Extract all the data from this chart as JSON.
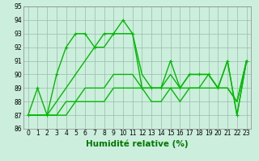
{
  "xlabel": "Humidité relative (%)",
  "bg_color": "#cceedd",
  "grid_color": "#99bbaa",
  "line_color": "#00bb00",
  "xlim": [
    -0.5,
    23.5
  ],
  "ylim": [
    86,
    95
  ],
  "yticks": [
    86,
    87,
    88,
    89,
    90,
    91,
    92,
    93,
    94,
    95
  ],
  "xticks": [
    0,
    1,
    2,
    3,
    4,
    5,
    6,
    7,
    8,
    9,
    10,
    11,
    12,
    13,
    14,
    15,
    16,
    17,
    18,
    19,
    20,
    21,
    22,
    23
  ],
  "series": [
    [
      87,
      89,
      87,
      90,
      92,
      93,
      93,
      92,
      93,
      93,
      94,
      93,
      89,
      89,
      89,
      91,
      89,
      90,
      90,
      90,
      89,
      91,
      87,
      91
    ],
    [
      87,
      87,
      87,
      88,
      89,
      90,
      91,
      92,
      92,
      93,
      93,
      93,
      90,
      89,
      89,
      90,
      89,
      90,
      90,
      90,
      89,
      91,
      87,
      91
    ],
    [
      87,
      87,
      87,
      87,
      88,
      88,
      89,
      89,
      89,
      90,
      90,
      90,
      89,
      89,
      89,
      89,
      89,
      89,
      89,
      90,
      89,
      89,
      88,
      91
    ],
    [
      87,
      87,
      87,
      87,
      87,
      88,
      88,
      88,
      88,
      89,
      89,
      89,
      89,
      88,
      88,
      89,
      88,
      89,
      89,
      89,
      89,
      89,
      88,
      91
    ]
  ],
  "markers": [
    true,
    false,
    false,
    false
  ],
  "xlabel_color": "#007700",
  "xlabel_fontsize": 7.5,
  "tick_fontsize": 5.5,
  "linewidth": 1.0
}
